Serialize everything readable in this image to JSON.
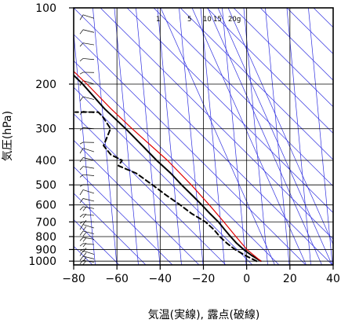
{
  "chart_data": {
    "type": "line",
    "diagram": "skew-t",
    "ylabel": "気圧(hPa)",
    "xlabel": "気温(実線), 露点(破線)",
    "x_ticks": [
      -80,
      -60,
      -40,
      -20,
      0,
      20,
      40
    ],
    "x_tick_labels": [
      "−80",
      "−60",
      "−40",
      "−20",
      "0",
      "20",
      "40"
    ],
    "y_ticks": [
      100,
      200,
      300,
      400,
      500,
      600,
      700,
      800,
      900,
      1000
    ],
    "y_tick_labels": [
      "100",
      "200",
      "300",
      "400",
      "500",
      "600",
      "700",
      "800",
      "900",
      "1000"
    ],
    "xlim": [
      -80,
      40
    ],
    "ylim": [
      1000,
      100
    ],
    "y_scale": "log",
    "mixing_ratio_labels": [
      "1",
      "5",
      "10",
      "15",
      "20g"
    ],
    "grid": true,
    "series": [
      {
        "key": "temperature",
        "style": "solid",
        "color": "#000000",
        "points": [
          [
            1000,
            27
          ],
          [
            950,
            23
          ],
          [
            900,
            19.5
          ],
          [
            850,
            16.5
          ],
          [
            800,
            14
          ],
          [
            750,
            11.5
          ],
          [
            700,
            9
          ],
          [
            650,
            5.5
          ],
          [
            600,
            2
          ],
          [
            550,
            -2
          ],
          [
            500,
            -6.5
          ],
          [
            450,
            -11
          ],
          [
            400,
            -17
          ],
          [
            350,
            -23
          ],
          [
            300,
            -30
          ],
          [
            250,
            -39
          ],
          [
            200,
            -48
          ],
          [
            180,
            -53
          ],
          [
            160,
            -56
          ],
          [
            140,
            -59
          ],
          [
            120,
            -63
          ],
          [
            100,
            -66
          ]
        ]
      },
      {
        "key": "dewpoint",
        "style": "dashed",
        "color": "#000000",
        "points": [
          [
            1000,
            25
          ],
          [
            950,
            20
          ],
          [
            900,
            15.5
          ],
          [
            850,
            12
          ],
          [
            800,
            9
          ],
          [
            750,
            6.5
          ],
          [
            700,
            3
          ],
          [
            650,
            -3
          ],
          [
            600,
            -8
          ],
          [
            550,
            -14
          ],
          [
            500,
            -20
          ],
          [
            450,
            -27
          ],
          [
            420,
            -35
          ],
          [
            400,
            -33
          ],
          [
            380,
            -38
          ],
          [
            350,
            -41
          ],
          [
            300,
            -37
          ],
          [
            270,
            -40
          ],
          [
            258,
            -42
          ],
          [
            258,
            -80
          ]
        ]
      },
      {
        "key": "parcel",
        "style": "solid",
        "color": "#e00000",
        "points": [
          [
            1000,
            27
          ],
          [
            900,
            21
          ],
          [
            800,
            16.5
          ],
          [
            700,
            11.5
          ],
          [
            600,
            5.5
          ],
          [
            500,
            -2
          ],
          [
            400,
            -12
          ],
          [
            300,
            -27
          ],
          [
            250,
            -36
          ],
          [
            200,
            -46
          ],
          [
            150,
            -60
          ],
          [
            130,
            -68
          ]
        ]
      }
    ],
    "wind_barb_column": "left of -60",
    "colors": {
      "frame": "#000000",
      "grid": "#000000",
      "guide_lines": "#3030e0",
      "temperature": "#000000",
      "dewpoint": "#000000",
      "parcel": "#e00000"
    }
  }
}
